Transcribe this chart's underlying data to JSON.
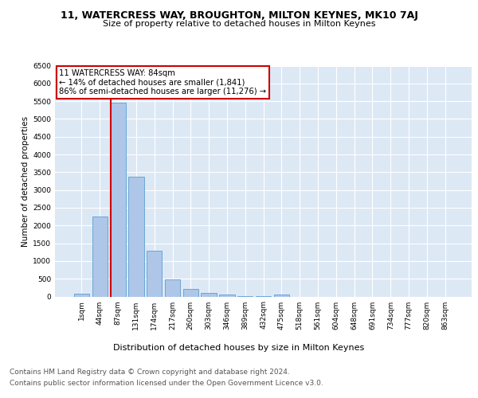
{
  "title": "11, WATERCRESS WAY, BROUGHTON, MILTON KEYNES, MK10 7AJ",
  "subtitle": "Size of property relative to detached houses in Milton Keynes",
  "xlabel": "Distribution of detached houses by size in Milton Keynes",
  "ylabel": "Number of detached properties",
  "categories": [
    "1sqm",
    "44sqm",
    "87sqm",
    "131sqm",
    "174sqm",
    "217sqm",
    "260sqm",
    "303sqm",
    "346sqm",
    "389sqm",
    "432sqm",
    "475sqm",
    "518sqm",
    "561sqm",
    "604sqm",
    "648sqm",
    "691sqm",
    "734sqm",
    "777sqm",
    "820sqm",
    "863sqm"
  ],
  "values": [
    75,
    2250,
    5450,
    3380,
    1290,
    480,
    220,
    100,
    50,
    5,
    5,
    60,
    0,
    0,
    0,
    0,
    0,
    0,
    0,
    0,
    0
  ],
  "bar_color": "#aec6e8",
  "bar_edge_color": "#5a9fd4",
  "annotation_text": "11 WATERCRESS WAY: 84sqm\n← 14% of detached houses are smaller (1,841)\n86% of semi-detached houses are larger (11,276) →",
  "annotation_box_color": "#ffffff",
  "annotation_border_color": "#cc0000",
  "ylim": [
    0,
    6500
  ],
  "yticks": [
    0,
    500,
    1000,
    1500,
    2000,
    2500,
    3000,
    3500,
    4000,
    4500,
    5000,
    5500,
    6000,
    6500
  ],
  "background_color": "#dde8f5",
  "grid_color": "#ffffff",
  "footer_line1": "Contains HM Land Registry data © Crown copyright and database right 2024.",
  "footer_line2": "Contains public sector information licensed under the Open Government Licence v3.0.",
  "title_fontsize": 9,
  "subtitle_fontsize": 8,
  "xlabel_fontsize": 8,
  "ylabel_fontsize": 7.5,
  "tick_fontsize": 6.5,
  "footer_fontsize": 6.5
}
